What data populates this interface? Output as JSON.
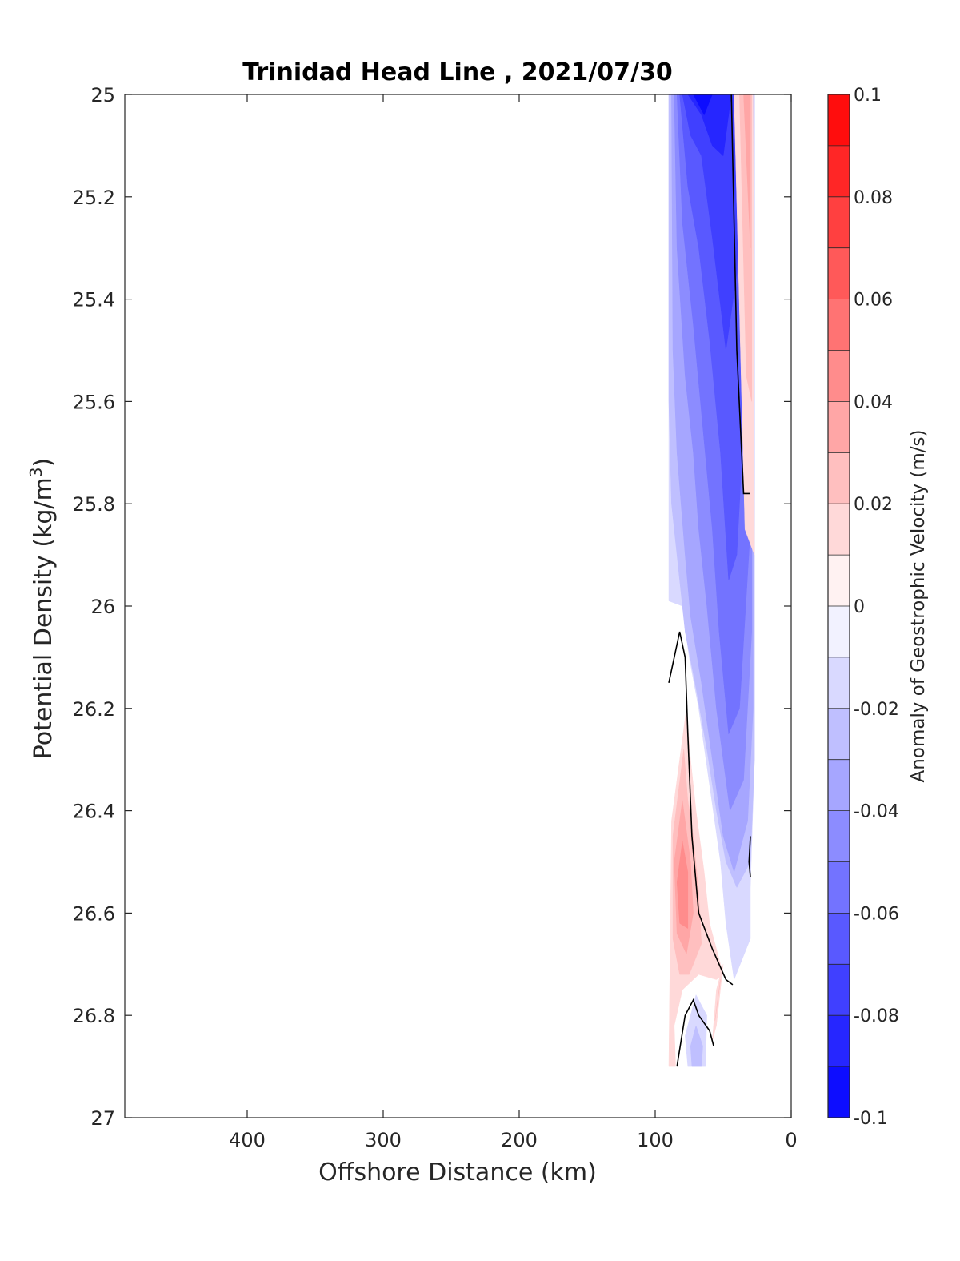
{
  "chart_data": {
    "type": "heatmap",
    "title": "Trinidad Head Line , 2021/07/30",
    "xlabel": "Offshore Distance (km)",
    "ylabel_main": "Potential Density (kg/m",
    "ylabel_sup": "3",
    "ylabel_close": ")",
    "xlim": [
      490,
      0
    ],
    "ylim": [
      27,
      25
    ],
    "x_reversed": true,
    "y_reversed": true,
    "xticks": [
      400,
      300,
      200,
      100,
      0
    ],
    "xtick_labels": [
      "400",
      "300",
      "200",
      "100",
      "0"
    ],
    "yticks": [
      25,
      25.2,
      25.4,
      25.6,
      25.8,
      26,
      26.2,
      26.4,
      26.6,
      26.8,
      27
    ],
    "ytick_labels": [
      "25",
      "25.2",
      "25.4",
      "25.6",
      "25.8",
      "26",
      "26.2",
      "26.4",
      "26.6",
      "26.8",
      "27"
    ],
    "contour_level": 0,
    "colorbar": {
      "label": "Anomaly of Geostrophic Velocity (m/s)",
      "min": -0.1,
      "max": 0.1,
      "step": 0.01,
      "colormap": "blue-white-red",
      "ticks": [
        0.1,
        0.08,
        0.06,
        0.04,
        0.02,
        0,
        -0.02,
        -0.04,
        -0.06,
        -0.08,
        -0.1
      ],
      "tick_labels": [
        "0.1",
        "0.08",
        "0.06",
        "0.04",
        "0.02",
        "0",
        "-0.02",
        "-0.04",
        "-0.06",
        "-0.08",
        "-0.1"
      ]
    },
    "regions": [
      {
        "value": -0.015,
        "points": [
          [
            90,
            25
          ],
          [
            27,
            25
          ],
          [
            27,
            26.3
          ],
          [
            30,
            26.55
          ],
          [
            30,
            26.65
          ],
          [
            42,
            26.73
          ],
          [
            48,
            26.62
          ],
          [
            52,
            26.5
          ],
          [
            60,
            26.35
          ],
          [
            68,
            26.2
          ],
          [
            75,
            26.1
          ],
          [
            80,
            26.0
          ],
          [
            90,
            25.99
          ]
        ]
      },
      {
        "value": -0.025,
        "points": [
          [
            90,
            25
          ],
          [
            27,
            25
          ],
          [
            27,
            26.3
          ],
          [
            30,
            26.5
          ],
          [
            40,
            26.55
          ],
          [
            48,
            26.5
          ],
          [
            55,
            26.4
          ],
          [
            62,
            26.28
          ],
          [
            70,
            26.16
          ],
          [
            78,
            26.05
          ],
          [
            82,
            25.95
          ],
          [
            88,
            25.8
          ],
          [
            90,
            25.6
          ]
        ]
      },
      {
        "value": -0.035,
        "points": [
          [
            88,
            25
          ],
          [
            28,
            25
          ],
          [
            28,
            26.2
          ],
          [
            32,
            26.42
          ],
          [
            42,
            26.52
          ],
          [
            50,
            26.45
          ],
          [
            58,
            26.3
          ],
          [
            66,
            26.15
          ],
          [
            74,
            26.02
          ],
          [
            78,
            25.9
          ],
          [
            84,
            25.7
          ],
          [
            87,
            25.5
          ]
        ]
      },
      {
        "value": -0.045,
        "points": [
          [
            86,
            25
          ],
          [
            29,
            25
          ],
          [
            29,
            26.05
          ],
          [
            35,
            26.34
          ],
          [
            45,
            26.4
          ],
          [
            55,
            26.2
          ],
          [
            62,
            26.0
          ],
          [
            68,
            25.85
          ],
          [
            72,
            25.7
          ],
          [
            78,
            25.55
          ],
          [
            84,
            25.3
          ]
        ]
      },
      {
        "value": -0.055,
        "points": [
          [
            84,
            25
          ],
          [
            30,
            25
          ],
          [
            30,
            25.85
          ],
          [
            38,
            26.2
          ],
          [
            46,
            26.25
          ],
          [
            53,
            26.05
          ],
          [
            58,
            25.85
          ],
          [
            65,
            25.65
          ],
          [
            72,
            25.45
          ],
          [
            80,
            25.25
          ]
        ]
      },
      {
        "value": -0.065,
        "points": [
          [
            82,
            25
          ],
          [
            32,
            25
          ],
          [
            33,
            25.55
          ],
          [
            40,
            25.9
          ],
          [
            46,
            25.95
          ],
          [
            52,
            25.7
          ],
          [
            60,
            25.48
          ],
          [
            68,
            25.3
          ],
          [
            76,
            25.18
          ]
        ]
      },
      {
        "value": -0.075,
        "points": [
          [
            80,
            25
          ],
          [
            36,
            25
          ],
          [
            40,
            25.35
          ],
          [
            48,
            25.5
          ],
          [
            58,
            25.28
          ],
          [
            66,
            25.12
          ],
          [
            74,
            25.08
          ]
        ]
      },
      {
        "value": -0.085,
        "points": [
          [
            76,
            25
          ],
          [
            44,
            25
          ],
          [
            50,
            25.12
          ],
          [
            58,
            25.1
          ],
          [
            66,
            25.04
          ]
        ]
      },
      {
        "value": -0.095,
        "points": [
          [
            72,
            25
          ],
          [
            58,
            25
          ],
          [
            64,
            25.04
          ]
        ]
      },
      {
        "value": 0.015,
        "points": [
          [
            42,
            25
          ],
          [
            28,
            25
          ],
          [
            27,
            25.9
          ],
          [
            34,
            25.85
          ]
        ]
      },
      {
        "value": 0.025,
        "points": [
          [
            38,
            25
          ],
          [
            29,
            25
          ],
          [
            29,
            25.6
          ],
          [
            33,
            25.55
          ]
        ]
      },
      {
        "value": 0.035,
        "points": [
          [
            35,
            25
          ],
          [
            30,
            25
          ],
          [
            30,
            25.3
          ]
        ]
      },
      {
        "value": 0.015,
        "points": [
          [
            77,
            26.2
          ],
          [
            88,
            26.42
          ],
          [
            90,
            26.9
          ],
          [
            85,
            26.9
          ],
          [
            86,
            26.82
          ],
          [
            80,
            26.75
          ],
          [
            68,
            26.72
          ],
          [
            55,
            26.73
          ],
          [
            50,
            26.72
          ],
          [
            60,
            26.62
          ],
          [
            64,
            26.52
          ],
          [
            70,
            26.4
          ],
          [
            74,
            26.3
          ]
        ]
      },
      {
        "value": 0.025,
        "points": [
          [
            79,
            26.28
          ],
          [
            87,
            26.45
          ],
          [
            87,
            26.65
          ],
          [
            82,
            26.72
          ],
          [
            75,
            26.72
          ],
          [
            66,
            26.66
          ],
          [
            68,
            26.56
          ],
          [
            72,
            26.45
          ],
          [
            76,
            26.38
          ]
        ]
      },
      {
        "value": 0.035,
        "points": [
          [
            80,
            26.38
          ],
          [
            86,
            26.5
          ],
          [
            84,
            26.64
          ],
          [
            77,
            26.68
          ],
          [
            72,
            26.6
          ],
          [
            74,
            26.5
          ]
        ]
      },
      {
        "value": 0.045,
        "points": [
          [
            80,
            26.46
          ],
          [
            84,
            26.54
          ],
          [
            82,
            26.62
          ],
          [
            76,
            26.63
          ],
          [
            76,
            26.52
          ]
        ]
      },
      {
        "value": 0.015,
        "points": [
          [
            50,
            26.7
          ],
          [
            55,
            26.75
          ],
          [
            58,
            26.85
          ],
          [
            55,
            26.82
          ]
        ]
      },
      {
        "value": 0.025,
        "points": [
          [
            52,
            26.73
          ],
          [
            54,
            26.77
          ],
          [
            56,
            26.81
          ]
        ]
      },
      {
        "value": -0.015,
        "points": [
          [
            78,
            26.84
          ],
          [
            70,
            26.76
          ],
          [
            62,
            26.8
          ],
          [
            63,
            26.9
          ],
          [
            76,
            26.9
          ]
        ]
      },
      {
        "value": -0.025,
        "points": [
          [
            74,
            26.86
          ],
          [
            70,
            26.82
          ],
          [
            65,
            26.86
          ],
          [
            66,
            26.9
          ],
          [
            73,
            26.9
          ]
        ]
      }
    ],
    "contours": [
      [
        [
          44,
          25
        ],
        [
          42,
          25.25
        ],
        [
          40,
          25.5
        ],
        [
          35,
          25.78
        ],
        [
          30,
          25.78
        ]
      ],
      [
        [
          90,
          26.15
        ],
        [
          86,
          26.1
        ],
        [
          82,
          26.05
        ],
        [
          78,
          26.1
        ],
        [
          76,
          26.25
        ],
        [
          73,
          26.45
        ],
        [
          68,
          26.6
        ],
        [
          58,
          26.67
        ],
        [
          48,
          26.73
        ],
        [
          43,
          26.74
        ]
      ],
      [
        [
          84,
          26.9
        ],
        [
          78,
          26.8
        ],
        [
          72,
          26.77
        ],
        [
          68,
          26.8
        ],
        [
          60,
          26.83
        ],
        [
          57,
          26.86
        ]
      ],
      [
        [
          30,
          26.45
        ],
        [
          31,
          26.5
        ],
        [
          30,
          26.53
        ]
      ]
    ]
  }
}
